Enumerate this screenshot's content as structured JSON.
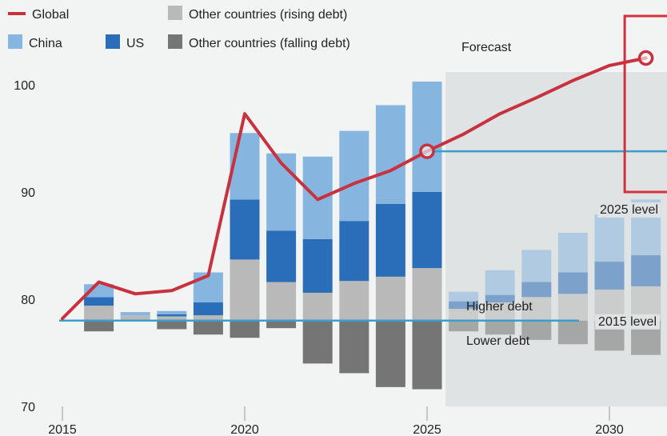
{
  "chart_data": {
    "type": "bar",
    "subtype": "stacked bar with line overlay",
    "title": "",
    "xlabel": "",
    "ylabel": "",
    "ylim": [
      70,
      102.5
    ],
    "yticks": [
      70,
      80,
      90,
      100
    ],
    "xtick_labels": [
      "2015",
      "2020",
      "2025",
      "2030"
    ],
    "grid": false,
    "legend_position": "top-left",
    "baseline_value": 78,
    "stack_order": [
      "falling",
      "rising",
      "us",
      "china"
    ],
    "x": [
      2016,
      2017,
      2018,
      2019,
      2020,
      2021,
      2022,
      2023,
      2024,
      2025,
      2026,
      2027,
      2028,
      2029,
      2030,
      2031
    ],
    "forecast_start": 2026,
    "series": [
      {
        "key": "china",
        "name": "China",
        "type": "bar",
        "color": "#86b6e0",
        "values": [
          1.2,
          0.3,
          0.3,
          2.8,
          6.2,
          7.2,
          7.7,
          8.4,
          9.2,
          10.3,
          0.9,
          2.3,
          3.0,
          3.7,
          4.4,
          5.2
        ]
      },
      {
        "key": "us",
        "name": "US",
        "type": "bar",
        "color": "#2a6db8",
        "values": [
          0.8,
          0.0,
          0.2,
          1.2,
          5.6,
          4.8,
          5.0,
          5.6,
          6.8,
          7.1,
          0.7,
          0.7,
          1.4,
          2.0,
          2.6,
          2.9
        ]
      },
      {
        "key": "rising",
        "name": "Other countries (rising debt)",
        "type": "bar",
        "color": "#b9b9b9",
        "values": [
          1.4,
          0.5,
          0.4,
          0.5,
          5.7,
          3.6,
          2.6,
          3.7,
          4.1,
          4.9,
          1.1,
          1.7,
          2.2,
          2.5,
          2.9,
          3.2
        ]
      },
      {
        "key": "falling",
        "name": "Other countries (falling debt)",
        "type": "bar",
        "color": "#757575",
        "values": [
          -1.0,
          0.0,
          -0.8,
          -1.3,
          -1.6,
          -0.7,
          -4.0,
          -4.9,
          -6.2,
          -6.4,
          -1.0,
          -1.3,
          -1.8,
          -2.2,
          -2.8,
          -3.2
        ]
      },
      {
        "key": "global",
        "name": "Global",
        "type": "line",
        "color": "#c8313e",
        "x": [
          2015,
          2016,
          2017,
          2018,
          2019,
          2020,
          2021,
          2022,
          2023,
          2024,
          2025,
          2026,
          2027,
          2028,
          2029,
          2030,
          2031
        ],
        "values": [
          78.2,
          81.6,
          80.5,
          80.8,
          82.2,
          97.3,
          92.7,
          89.3,
          90.8,
          92.0,
          93.8,
          95.4,
          97.3,
          98.8,
          100.4,
          101.8,
          102.5
        ]
      }
    ],
    "reference_lines": [
      {
        "value": 78,
        "label": "2015 level",
        "color": "#3aa0c8"
      },
      {
        "value": 93.8,
        "label": "2025 level",
        "color": "#3aa0c8"
      }
    ],
    "highlight_markers": [
      {
        "x": 2025,
        "y": 93.8
      },
      {
        "x": 2031,
        "y": 102.5
      }
    ],
    "annotations": {
      "forecast": "Forecast",
      "higher_debt": "Higher debt",
      "lower_debt": "Lower debt"
    },
    "legend_items": [
      {
        "key": "global",
        "label": "Global",
        "kind": "line"
      },
      {
        "key": "rising",
        "label": "Other countries (rising debt)",
        "kind": "box"
      },
      {
        "key": "china",
        "label": "China",
        "kind": "box"
      },
      {
        "key": "us",
        "label": "US",
        "kind": "box"
      },
      {
        "key": "falling",
        "label": "Other countries (falling debt)",
        "kind": "box"
      }
    ],
    "colors": {
      "forecast_shade": "#dfe3e3",
      "highlight_box": "#d32f3c"
    }
  }
}
